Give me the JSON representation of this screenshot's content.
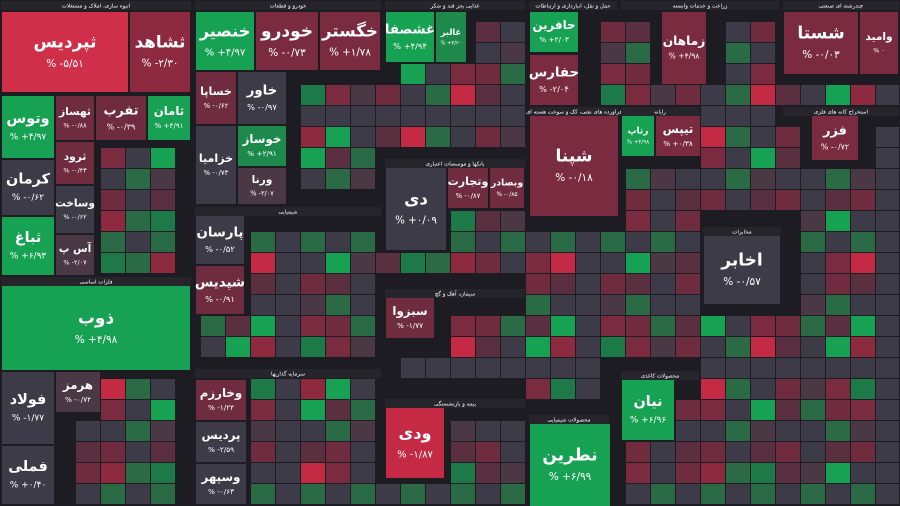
{
  "sectors": [
    {
      "title": "انبوه سازی، املاک و مستغلات",
      "tiles": [
        {
          "symbol": "ثپردیس",
          "change": "% -۵/۵۱",
          "color": "#cf2f49"
        },
        {
          "symbol": "ثشاهد",
          "change": "% -۲/۳۰",
          "color": "#8e2a40"
        },
        {
          "symbol": "وتوس",
          "change": "% +۴/۹۷",
          "color": "#16a153"
        },
        {
          "symbol": "ثهساز",
          "change": "% -۰/۸۸",
          "color": "#6e2c3e"
        },
        {
          "symbol": "تفرب",
          "change": "% -۰/۳۹",
          "color": "#6e2c3e"
        },
        {
          "symbol": "ثامان",
          "change": "% +۴/۹۱",
          "color": "#16a153"
        },
        {
          "symbol": "کرمان",
          "change": "% -۰/۶۲",
          "color": "#3e3b48"
        },
        {
          "symbol": "ثباغ",
          "change": "% +۶/۹۳",
          "color": "#16a153"
        },
        {
          "symbol": "آس پ",
          "change": "% -۲/۰۷",
          "color": "#4a3845"
        },
        {
          "symbol": "ثرود",
          "change": "% -۰/۴۳",
          "color": "#6e2c3e"
        },
        {
          "symbol": "وساخت",
          "change": "% -۰/۶۲",
          "color": "#3e3b48"
        }
      ]
    },
    {
      "title": "فلزات اساسی",
      "tiles": [
        {
          "symbol": "ذوب",
          "change": "% +۴/۹۸",
          "color": "#16a153"
        },
        {
          "symbol": "فولاد",
          "change": "% -۱/۷۷",
          "color": "#3e3b48"
        },
        {
          "symbol": "فملی",
          "change": "% +۰/۴۰",
          "color": "#3e3b48"
        },
        {
          "symbol": "هرمز",
          "change": "% -۰/۷۴",
          "color": "#4a3845"
        }
      ]
    },
    {
      "title": "خودرو و قطعات",
      "tiles": [
        {
          "symbol": "خنصیر",
          "change": "% +۴/۹۷",
          "color": "#16a153"
        },
        {
          "symbol": "خودرو",
          "change": "% -۰/۷۳",
          "color": "#7a2b40"
        },
        {
          "symbol": "خگستر",
          "change": "% +۱/۷۸",
          "color": "#7a2b40"
        },
        {
          "symbol": "خساپا",
          "change": "% -۰/۶۲",
          "color": "#6e2c3e"
        },
        {
          "symbol": "خاور",
          "change": "% -۰/۹۷",
          "color": "#3e3b48"
        },
        {
          "symbol": "خزامیا",
          "change": "% -۰/۷۳",
          "color": "#3e3b48"
        },
        {
          "symbol": "خوساز",
          "change": "% +۲/۹۱",
          "color": "#1d8a4c"
        },
        {
          "symbol": "ورنا",
          "change": "% -۳/۰۷",
          "color": "#4a3845"
        }
      ]
    },
    {
      "title": "شیمیایی",
      "tiles": [
        {
          "symbol": "پارسان",
          "change": "% -۰/۵۲",
          "color": "#3e3b48"
        },
        {
          "symbol": "شپدیس",
          "change": "% -۰/۹۱",
          "color": "#6e2c3e"
        }
      ]
    },
    {
      "title": "سرمایه گذاریها",
      "tiles": [
        {
          "symbol": "وخارزم",
          "change": "% -۱/۲۴",
          "color": "#6e2c3e"
        },
        {
          "symbol": "پردیس",
          "change": "% -۲/۵۹",
          "color": "#3e3b48"
        },
        {
          "symbol": "وسپهر",
          "change": "% -۰/۶۳",
          "color": "#3e3b48"
        }
      ]
    },
    {
      "title": "غذایی بجز قند و شکر",
      "tiles": [
        {
          "symbol": "غشصفا",
          "change": "% +۴/۹۴",
          "color": "#16a153"
        },
        {
          "symbol": "غالبر",
          "change": "% +۳/۲۰",
          "color": "#1d8a4c"
        }
      ]
    },
    {
      "title": "بانکها و موسسات اعتباری",
      "tiles": [
        {
          "symbol": "دی",
          "change": "% +۰/۰۹",
          "color": "#3e3b48"
        },
        {
          "symbol": "وتجارت",
          "change": "% -۰/۸۷",
          "color": "#6e2c3e"
        },
        {
          "symbol": "وبصادر",
          "change": "% -۰/۸۵",
          "color": "#6e2c3e"
        }
      ]
    },
    {
      "title": "سیمان، آهک و گچ",
      "tiles": [
        {
          "symbol": "سبزوا",
          "change": "% -۱/۷۷",
          "color": "#6e2c3e"
        }
      ]
    },
    {
      "title": "بیمه و بازنشستگی",
      "tiles": [
        {
          "symbol": "ودی",
          "change": "% -۱/۸۷",
          "color": "#c52a45"
        }
      ]
    },
    {
      "title": "حمل و نقل، انبارداری و ارتباطات",
      "tiles": [
        {
          "symbol": "حافرین",
          "change": "% +۲/۰۳",
          "color": "#16a153"
        },
        {
          "symbol": "حفارس",
          "change": "% -۲/۰۴",
          "color": "#7a2b40"
        }
      ]
    },
    {
      "title": "فراورده های نفتی، کک و سوخت هسته ای",
      "tiles": [
        {
          "symbol": "شپنا",
          "change": "% -۰/۱۸",
          "color": "#7a2b40"
        }
      ]
    },
    {
      "title": "محصولات شیمیایی",
      "tiles": [
        {
          "symbol": "نطرین",
          "change": "% +۶/۹۹",
          "color": "#16a153"
        }
      ]
    },
    {
      "title": "زراعت و خدمات وابسته",
      "tiles": [
        {
          "symbol": "زماهان",
          "change": "% +۴/۹۸",
          "color": "#7a2b40"
        }
      ]
    },
    {
      "title": "رایانه",
      "tiles": [
        {
          "symbol": "رتاپ",
          "change": "% +۴/۹۸",
          "color": "#16a153"
        },
        {
          "symbol": "تیپس",
          "change": "% +۰/۳۸",
          "color": "#7a2b40"
        }
      ]
    },
    {
      "title": "مخابرات",
      "tiles": [
        {
          "symbol": "اخابر",
          "change": "% -۰/۵۷",
          "color": "#3e3b48"
        }
      ]
    },
    {
      "title": "محصولات کاغذی",
      "tiles": [
        {
          "symbol": "نیان",
          "change": "% +۶/۹۶",
          "color": "#16a153"
        }
      ]
    },
    {
      "title": "چندرشته ای صنعتی",
      "tiles": [
        {
          "symbol": "شستا",
          "change": "% -۰/۰۳",
          "color": "#7a2b40"
        },
        {
          "symbol": "وامید",
          "change": "% ۰",
          "color": "#7a2b40"
        }
      ]
    },
    {
      "title": "استخراج کانه های فلزی",
      "tiles": [
        {
          "symbol": "فزر",
          "change": "% -۰/۷۲",
          "color": "#7a2b40"
        }
      ]
    }
  ]
}
